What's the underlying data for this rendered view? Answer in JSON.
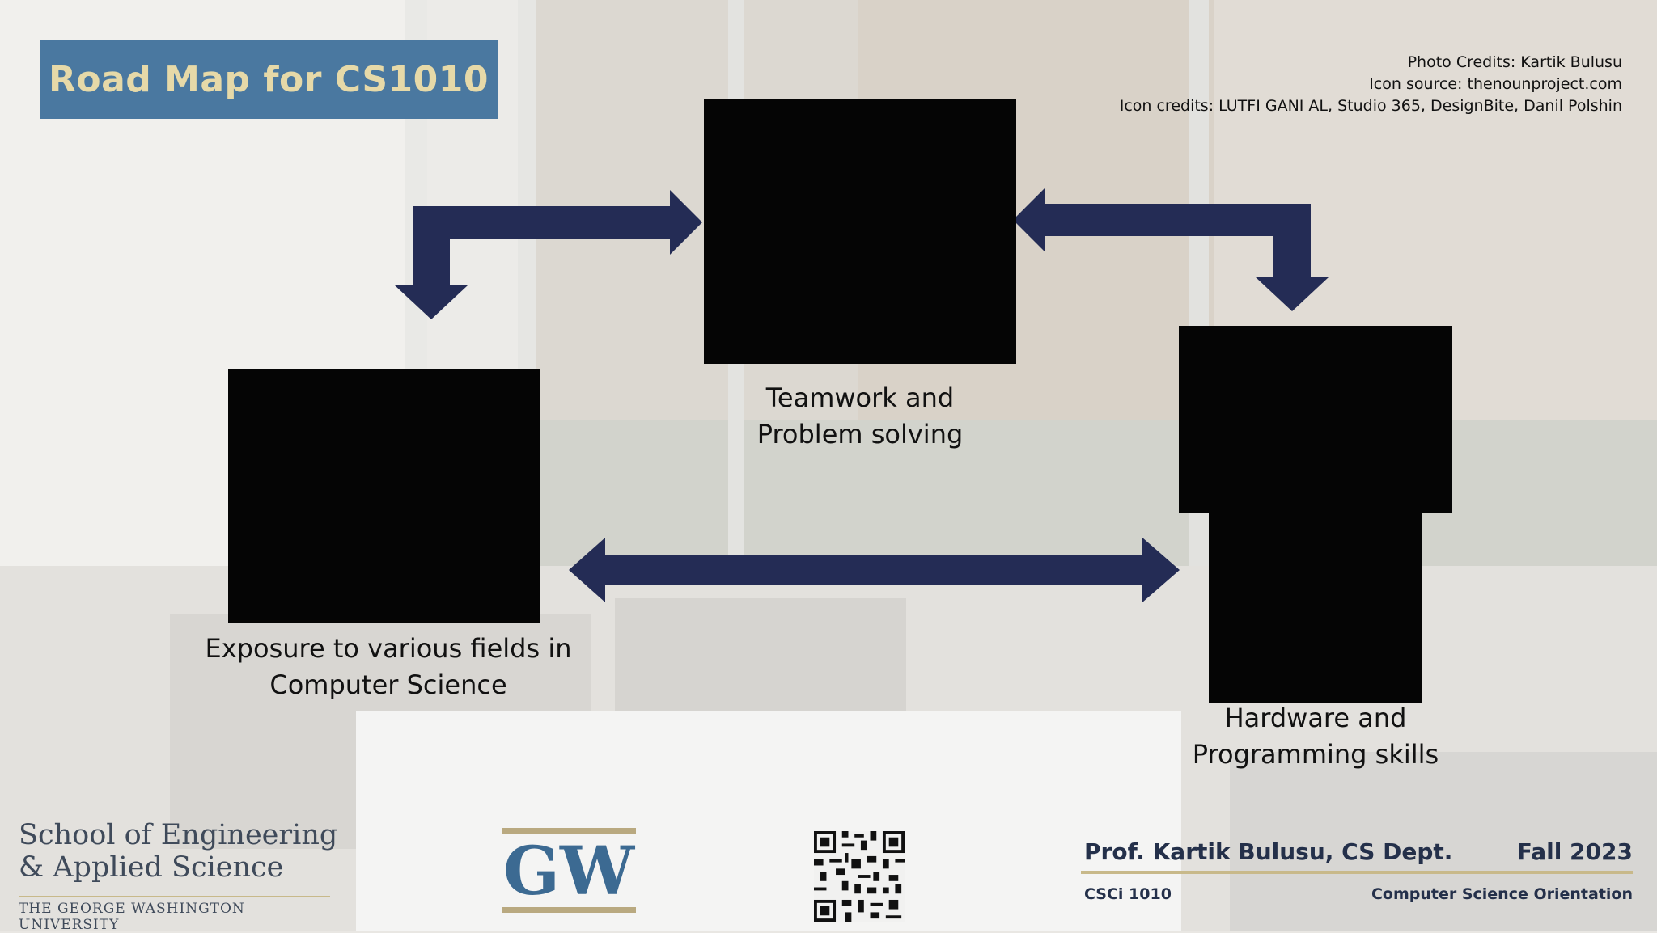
{
  "slide": {
    "title": "Road Map for CS1010",
    "credits": {
      "photo": "Photo Credits: Kartik Bulusu",
      "icon_source": "Icon source: thenounproject.com",
      "icon_credits": "Icon credits: LUTFI GANI AL, Studio 365, DesignBite, Danil Polshin"
    },
    "tiles": {
      "teamwork": {
        "line1": "Teamwork and",
        "line2": "Problem solving"
      },
      "exposure": {
        "line1": "Exposure to various fields in",
        "line2": "Computer Science"
      },
      "hardware": {
        "line1": "Hardware and",
        "line2": "Programming skills"
      }
    },
    "colors": {
      "arrow": "#242c55",
      "title_bg": "#4a78a0",
      "title_text": "#e6d9a8",
      "icon_box": "#050505",
      "gold": "#c8b98a"
    }
  },
  "footer": {
    "school_line1": "School of Engineering",
    "school_line2": "& Applied Science",
    "university": "THE GEORGE WASHINGTON UNIVERSITY",
    "gw_logo": "GW",
    "qr_icon": "qr-code-icon",
    "instructor": "Prof. Kartik Bulusu, CS Dept.",
    "term": "Fall 2023",
    "course": "CSCi 1010",
    "course_title": "Computer Science Orientation"
  }
}
